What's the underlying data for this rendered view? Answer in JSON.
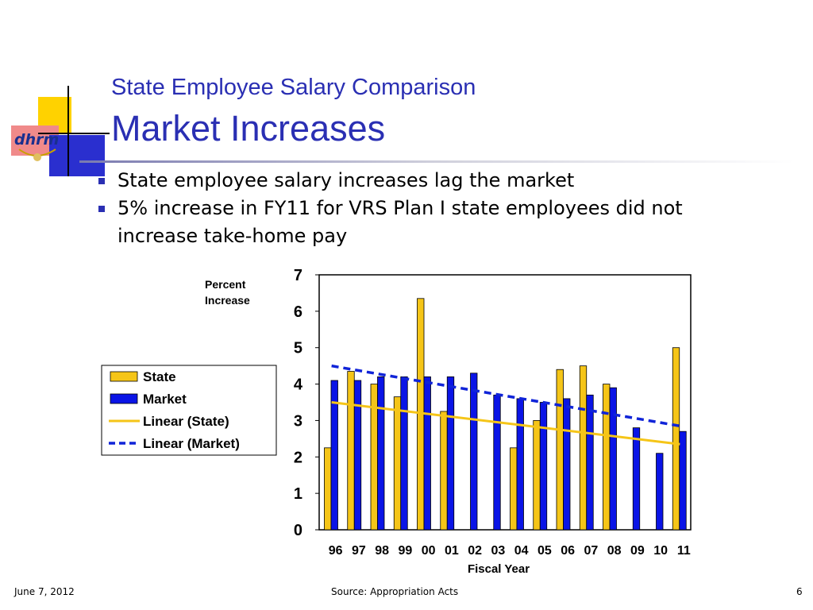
{
  "slide": {
    "title_line1": "State Employee Salary Comparison",
    "title_line2": "Market Increases",
    "bullets": [
      "State employee salary increases lag the market",
      "5% increase in FY11 for VRS Plan I state employees did not increase take-home pay"
    ],
    "logo_text": "dhrm",
    "footer_date": "June 7, 2012",
    "footer_source": "Source:  Appropriation Acts",
    "page_number": "6"
  },
  "colors": {
    "title": "#2a2fb3",
    "state": "#f5c518",
    "market": "#0a14e6",
    "state_trend": "#f5c518",
    "market_trend": "#1024d8"
  },
  "chart_data": {
    "type": "bar",
    "ylabel_lines": [
      "Percent",
      "Increase"
    ],
    "xlabel": "Fiscal Year",
    "categories": [
      "96",
      "97",
      "98",
      "99",
      "00",
      "01",
      "02",
      "03",
      "04",
      "05",
      "06",
      "07",
      "08",
      "09",
      "10",
      "11"
    ],
    "ylim": [
      0,
      7
    ],
    "yticks": [
      "0",
      "1",
      "2",
      "3",
      "4",
      "5",
      "6",
      "7"
    ],
    "grid": false,
    "legend_position": "left",
    "series": [
      {
        "name": "State",
        "values": [
          2.25,
          4.35,
          4.0,
          3.65,
          6.35,
          3.25,
          null,
          null,
          2.25,
          3.0,
          4.4,
          4.5,
          4.0,
          null,
          null,
          5.0
        ]
      },
      {
        "name": "Market",
        "values": [
          4.1,
          4.1,
          4.2,
          4.2,
          4.2,
          4.2,
          4.3,
          3.7,
          3.6,
          3.5,
          3.6,
          3.7,
          3.9,
          2.8,
          2.1,
          2.7
        ]
      }
    ],
    "trendlines": [
      {
        "name": "Linear (State)",
        "start": 3.5,
        "end": 2.35
      },
      {
        "name": "Linear (Market)",
        "start": 4.5,
        "end": 2.85
      }
    ]
  }
}
